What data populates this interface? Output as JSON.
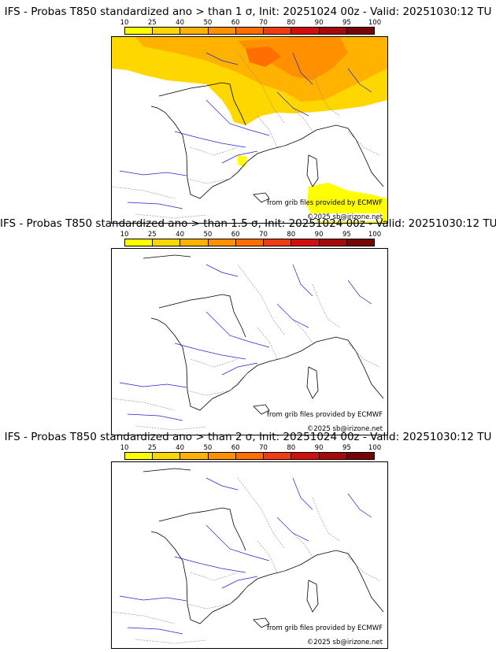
{
  "colorbar": {
    "labels": [
      "10",
      "25",
      "40",
      "50",
      "60",
      "70",
      "80",
      "90",
      "95",
      "100"
    ],
    "colors": [
      "#ffff00",
      "#ffd700",
      "#ffb300",
      "#ff9100",
      "#ff6e00",
      "#f03c14",
      "#d20f0f",
      "#a50a0a",
      "#780505"
    ]
  },
  "panels": [
    {
      "title": "IFS - Probas T850  standardized ano > than 1 σ, Init: 20251024 00z - Valid: 20251030:12 TU"
    },
    {
      "title": "IFS - Probas T850  standardized ano > than 1.5 σ, Init: 20251024 00z - Valid: 20251030:12 TU"
    },
    {
      "title": "IFS - Probas T850  standardized ano > than 2 σ, Init: 20251024 00z - Valid: 20251030:12 TU"
    }
  ],
  "credits": {
    "source": "from grib files provided by ECMWF",
    "copyright": "©2025 sb@irizone.net"
  }
}
